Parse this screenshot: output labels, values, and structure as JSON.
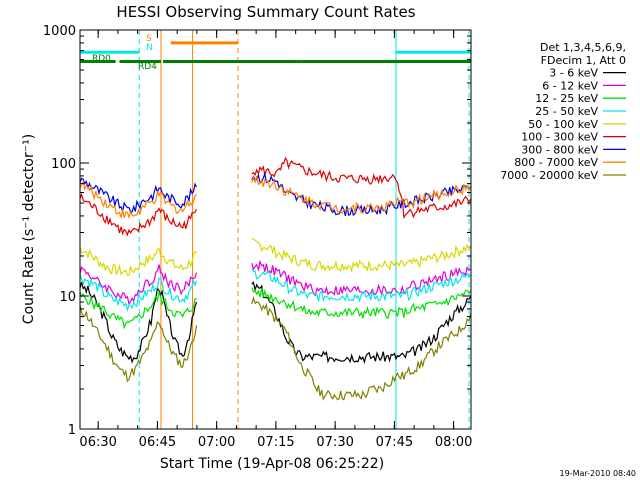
{
  "chart_data": {
    "type": "line",
    "title": "HESSI Observing Summary Count Rates",
    "xlabel": "Start Time (19-Apr-08 06:25:22)",
    "ylabel": "Count Rate (s⁻¹ detector⁻¹)",
    "x_unit": "minutes after 06:25:22",
    "xlim": [
      0,
      99
    ],
    "ylim": [
      1,
      1000
    ],
    "y_scale": "log",
    "grid": false,
    "legend_position": "right",
    "x_ticks": [
      {
        "label": "06:30",
        "x": 4.6
      },
      {
        "label": "06:45",
        "x": 19.6
      },
      {
        "label": "07:00",
        "x": 34.6
      },
      {
        "label": "07:15",
        "x": 49.6
      },
      {
        "label": "07:30",
        "x": 64.6
      },
      {
        "label": "07:45",
        "x": 79.6
      },
      {
        "label": "08:00",
        "x": 94.6
      }
    ],
    "y_ticks": [
      {
        "label": "1",
        "y": 1
      },
      {
        "label": "10",
        "y": 10
      },
      {
        "label": "100",
        "y": 100
      },
      {
        "label": "1000",
        "y": 1000
      }
    ],
    "legend_header": [
      "Det 1,3,4,5,6,9,",
      "FDecim 1, Att 0"
    ],
    "series": [
      {
        "name": "3 - 6 keV",
        "color": "#000000",
        "x": [
          0,
          2,
          4,
          6,
          8,
          10,
          12,
          14,
          16,
          18,
          20,
          22,
          24,
          26,
          28,
          29.5,
          43.5,
          46,
          48,
          50,
          52,
          54,
          56,
          58,
          60,
          62,
          64,
          66,
          68,
          70,
          72,
          74,
          76,
          78,
          80,
          82,
          84,
          86,
          88,
          90,
          92,
          94,
          96,
          98,
          99
        ],
        "y": [
          12,
          11,
          9,
          7,
          5,
          4,
          3.5,
          3.5,
          4.5,
          6.5,
          12,
          7,
          4.5,
          3.5,
          5.5,
          9,
          12,
          11,
          9,
          7,
          5,
          4,
          3.5,
          3.5,
          3.5,
          3.5,
          3.5,
          3.5,
          3.5,
          3.5,
          3.5,
          3.5,
          3.5,
          3.5,
          3.5,
          3.5,
          3.8,
          4,
          4.5,
          5,
          6,
          7,
          8,
          9,
          10
        ]
      },
      {
        "name": "6 - 12 keV",
        "color": "#e000e0",
        "x": [
          0,
          2,
          4,
          6,
          8,
          10,
          12,
          14,
          16,
          18,
          20,
          22,
          24,
          26,
          28,
          29.5,
          43.5,
          46,
          48,
          50,
          52,
          54,
          56,
          58,
          60,
          62,
          64,
          66,
          68,
          70,
          72,
          74,
          76,
          78,
          80,
          82,
          84,
          86,
          88,
          90,
          92,
          94,
          96,
          98,
          99
        ],
        "y": [
          16,
          15,
          13,
          12,
          11,
          10,
          9.5,
          10,
          12,
          13,
          16,
          13,
          12,
          11,
          13,
          15,
          17,
          17,
          16,
          15,
          14,
          13,
          12,
          11.5,
          11,
          11,
          11,
          11,
          11,
          11,
          11,
          11,
          11,
          11,
          11,
          11,
          12,
          12,
          13,
          13,
          14,
          14.5,
          15,
          15.5,
          16
        ]
      },
      {
        "name": "12 - 25 keV",
        "color": "#00e000",
        "x": [
          0,
          2,
          4,
          6,
          8,
          10,
          12,
          14,
          16,
          18,
          20,
          22,
          24,
          26,
          28,
          29.5,
          43.5,
          46,
          48,
          50,
          52,
          54,
          56,
          58,
          60,
          62,
          64,
          66,
          68,
          70,
          72,
          74,
          76,
          78,
          80,
          82,
          84,
          86,
          88,
          90,
          92,
          94,
          96,
          98,
          99
        ],
        "y": [
          10,
          9.5,
          8.5,
          8,
          7,
          6.5,
          6,
          6.5,
          7.5,
          8.5,
          10,
          8.5,
          7.5,
          7,
          8,
          9.5,
          11,
          10.5,
          10,
          9.5,
          9,
          8.5,
          8,
          7.5,
          7.5,
          7.5,
          7.5,
          7.5,
          7.5,
          7.5,
          7.5,
          7.5,
          7.5,
          7.5,
          7.5,
          7.5,
          8,
          8,
          8.5,
          8.5,
          9,
          9.5,
          10,
          10.5,
          11
        ]
      },
      {
        "name": "25 - 50 keV",
        "color": "#00e8e8",
        "x": [
          0,
          2,
          4,
          6,
          8,
          10,
          12,
          14,
          16,
          18,
          20,
          22,
          24,
          26,
          28,
          29.5,
          43.5,
          46,
          48,
          50,
          52,
          54,
          56,
          58,
          60,
          62,
          64,
          66,
          68,
          70,
          72,
          74,
          76,
          78,
          80,
          82,
          84,
          86,
          88,
          90,
          92,
          94,
          96,
          98,
          99
        ],
        "y": [
          14,
          13,
          12,
          10.5,
          9.5,
          9,
          8.5,
          9,
          10,
          11,
          13,
          11,
          10,
          9.5,
          11,
          13,
          15,
          14.5,
          14,
          13,
          12,
          11,
          10.5,
          10,
          10,
          10,
          10,
          10,
          10,
          10,
          10,
          10,
          10,
          10,
          10,
          10,
          10.5,
          11,
          11.5,
          12,
          12.5,
          13,
          13.5,
          14,
          14.5
        ]
      },
      {
        "name": "50 - 100 keV",
        "color": "#d8d800",
        "x": [
          0,
          2,
          4,
          6,
          8,
          10,
          12,
          14,
          16,
          18,
          20,
          22,
          24,
          26,
          28,
          29.5,
          43.5,
          46,
          48,
          50,
          52,
          54,
          56,
          58,
          60,
          62,
          64,
          66,
          68,
          70,
          72,
          74,
          76,
          78,
          80,
          82,
          84,
          86,
          88,
          90,
          92,
          94,
          96,
          98,
          99
        ],
        "y": [
          23,
          21,
          19,
          17,
          16,
          15.5,
          15,
          16,
          18,
          19,
          22,
          19,
          17,
          16,
          18,
          21,
          25,
          24,
          23,
          21,
          20,
          19,
          18,
          17.5,
          17,
          17,
          17,
          17,
          17,
          17,
          17,
          17,
          17,
          17,
          17,
          17,
          17.5,
          18,
          19,
          19.5,
          20,
          21,
          22,
          23,
          24
        ]
      },
      {
        "name": "100 - 300 keV",
        "color": "#e00000",
        "x": [
          0,
          2,
          4,
          6,
          8,
          10,
          12,
          14,
          16,
          18,
          20,
          22,
          24,
          26,
          28,
          29.5,
          43.5,
          46,
          48,
          50,
          52,
          54,
          56,
          58,
          60,
          62,
          64,
          66,
          68,
          70,
          72,
          74,
          76,
          78,
          80,
          82,
          84,
          86,
          88,
          90,
          92,
          94,
          96,
          98,
          99
        ],
        "y": [
          55,
          50,
          45,
          40,
          36,
          32,
          29,
          30,
          34,
          37,
          45,
          38,
          35,
          33,
          38,
          45,
          90,
          88,
          85,
          82,
          100,
          95,
          90,
          86,
          83,
          80,
          78,
          77,
          76,
          76,
          76,
          76,
          77,
          78,
          80,
          42,
          43,
          44,
          45,
          46,
          47,
          48,
          50,
          52,
          54
        ]
      },
      {
        "name": "300 - 800 keV",
        "color": "#0000e0",
        "x": [
          0,
          2,
          4,
          6,
          8,
          10,
          12,
          14,
          16,
          18,
          20,
          22,
          24,
          26,
          28,
          29.5,
          43.5,
          46,
          48,
          50,
          52,
          54,
          56,
          58,
          60,
          62,
          64,
          66,
          68,
          70,
          72,
          74,
          76,
          78,
          80,
          82,
          84,
          86,
          88,
          90,
          92,
          94,
          96,
          98,
          99
        ],
        "y": [
          75,
          70,
          64,
          58,
          53,
          48,
          45,
          46,
          52,
          56,
          65,
          56,
          52,
          50,
          58,
          66,
          80,
          78,
          76,
          73,
          60,
          56,
          53,
          50,
          48,
          46,
          45,
          44,
          44,
          44,
          44,
          44,
          45,
          46,
          48,
          50,
          51,
          53,
          55,
          57,
          59,
          61,
          63,
          65,
          67
        ]
      },
      {
        "name": "800 - 7000 keV",
        "color": "#ff8000",
        "x": [
          0,
          2,
          4,
          6,
          8,
          10,
          12,
          14,
          16,
          18,
          20,
          22,
          24,
          26,
          28,
          29.5,
          43.5,
          46,
          48,
          50,
          52,
          54,
          56,
          58,
          60,
          62,
          64,
          66,
          68,
          70,
          72,
          74,
          76,
          78,
          80,
          82,
          84,
          86,
          88,
          90,
          92,
          94,
          96,
          98,
          99
        ],
        "y": [
          70,
          64,
          58,
          52,
          47,
          43,
          40,
          41,
          46,
          50,
          58,
          50,
          46,
          44,
          51,
          58,
          75,
          73,
          71,
          68,
          62,
          58,
          55,
          52,
          50,
          48,
          47,
          46,
          46,
          46,
          46,
          46,
          47,
          48,
          50,
          50,
          51,
          53,
          55,
          57,
          59,
          61,
          63,
          65,
          67
        ]
      },
      {
        "name": "7000 - 20000 keV",
        "color": "#808000",
        "x": [
          0,
          2,
          4,
          6,
          8,
          10,
          12,
          14,
          16,
          18,
          20,
          22,
          24,
          26,
          28,
          29.5,
          43.5,
          46,
          48,
          50,
          52,
          54,
          56,
          58,
          60,
          62,
          64,
          66,
          68,
          70,
          72,
          74,
          76,
          78,
          80,
          82,
          84,
          86,
          88,
          90,
          92,
          94,
          96,
          98,
          99
        ],
        "y": [
          8,
          7,
          5.5,
          4.5,
          3.5,
          2.8,
          2.5,
          2.8,
          3.5,
          4.5,
          6.5,
          4.5,
          3.5,
          3,
          4,
          6,
          9,
          8.5,
          7.5,
          6.5,
          5.5,
          4,
          3,
          2.5,
          2,
          1.8,
          1.8,
          1.8,
          1.8,
          1.8,
          1.8,
          2,
          2,
          2.2,
          2.5,
          2.5,
          2.8,
          3,
          3.5,
          4,
          4.5,
          5,
          5.5,
          6.5,
          7.5
        ]
      }
    ],
    "data_gap": [
      29.5,
      43.5
    ],
    "flag_bars": [
      {
        "label": "S",
        "color": "#ff8000",
        "segments": [
          [
            23,
            40
          ]
        ],
        "y": 800
      },
      {
        "label": "N",
        "color": "#00e8e8",
        "segments": [
          [
            0,
            15
          ],
          [
            80,
            99
          ]
        ],
        "y": 680
      },
      {
        "label": "RD0",
        "color": "#008000",
        "segments": [
          [
            0,
            9
          ],
          [
            10,
            20.5
          ],
          [
            21,
            40
          ],
          [
            40,
            56
          ],
          [
            56,
            80
          ],
          [
            80,
            99
          ]
        ],
        "y": 580
      },
      {
        "label": "RD4",
        "color": "#008000",
        "segments": [],
        "y": 500
      }
    ],
    "vlines": [
      {
        "x": 0,
        "color": "#00e8e8",
        "style": "solid"
      },
      {
        "x": 15,
        "color": "#00e8e8",
        "style": "dashed"
      },
      {
        "x": 20.5,
        "color": "#ff8000",
        "style": "solid"
      },
      {
        "x": 28.5,
        "color": "#ff8000",
        "style": "solid"
      },
      {
        "x": 40,
        "color": "#ff8000",
        "style": "dashed"
      },
      {
        "x": 80,
        "color": "#00e8e8",
        "style": "solid"
      },
      {
        "x": 98.5,
        "color": "#00e8e8",
        "style": "dashed"
      }
    ],
    "annotations": [
      "S",
      "N",
      "RD0",
      "RD4"
    ],
    "footer": "19-Mar-2010 08:40"
  }
}
